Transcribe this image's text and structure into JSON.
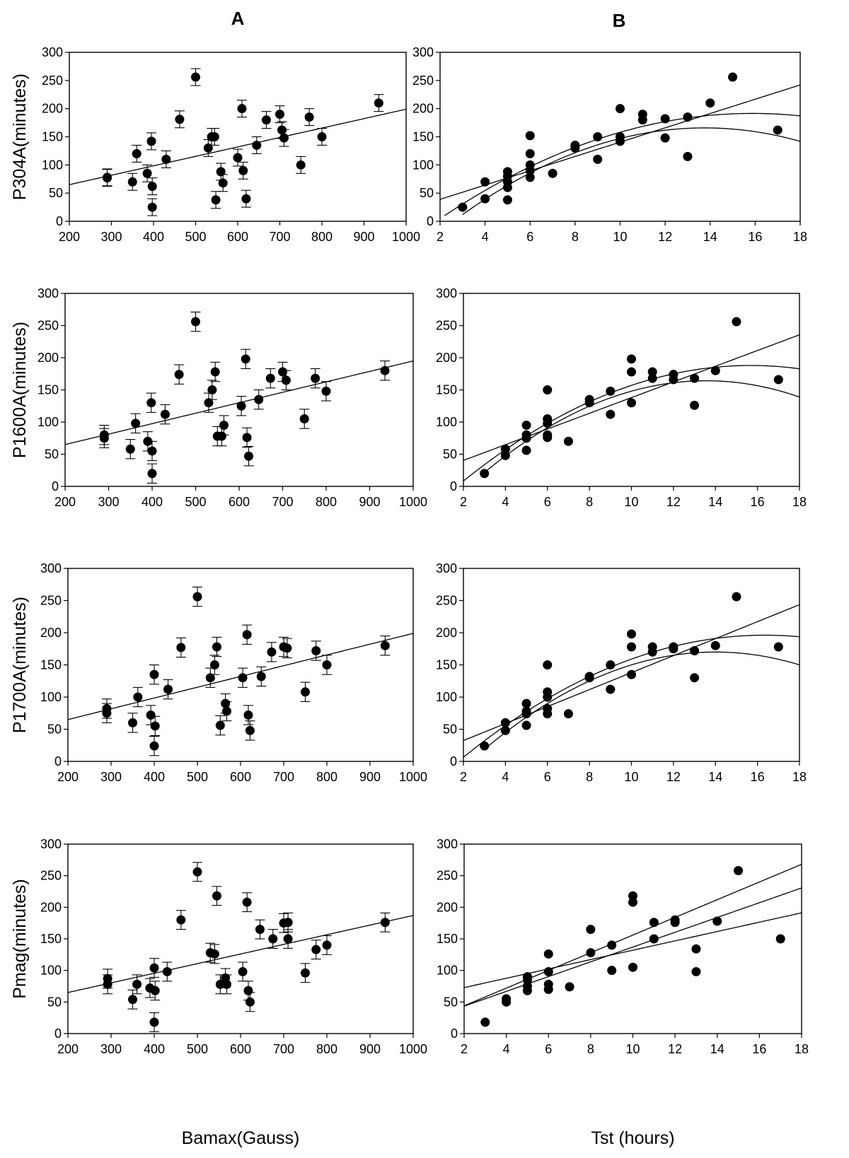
{
  "figure": {
    "column_labels": [
      "A",
      "B"
    ],
    "row_ylabels": [
      "P304A(minutes)",
      "P1600A(minutes)",
      "P1700A(minutes)",
      "Pmag(minutes)"
    ],
    "x_titles": [
      "Bamax(Gauss)",
      "Tst (hours)"
    ]
  },
  "chart_data": [
    {
      "id": "A1",
      "type": "scatter",
      "title": "",
      "xlabel": "",
      "ylabel": "P304A(minutes)",
      "xlim": [
        200,
        1000
      ],
      "ylim": [
        0,
        300
      ],
      "xticks": [
        200,
        300,
        400,
        500,
        600,
        700,
        800,
        900,
        1000
      ],
      "yticks": [
        0,
        50,
        100,
        150,
        200,
        250,
        300
      ],
      "error_bar": 15,
      "points": [
        [
          290,
          77
        ],
        [
          290,
          78
        ],
        [
          350,
          70
        ],
        [
          360,
          120
        ],
        [
          385,
          85
        ],
        [
          395,
          142
        ],
        [
          397,
          62
        ],
        [
          397,
          25
        ],
        [
          430,
          110
        ],
        [
          462,
          181
        ],
        [
          500,
          256
        ],
        [
          530,
          130
        ],
        [
          538,
          150
        ],
        [
          545,
          150
        ],
        [
          548,
          38
        ],
        [
          560,
          88
        ],
        [
          565,
          68
        ],
        [
          600,
          113
        ],
        [
          610,
          200
        ],
        [
          613,
          90
        ],
        [
          620,
          40
        ],
        [
          645,
          135
        ],
        [
          668,
          180
        ],
        [
          700,
          190
        ],
        [
          705,
          162
        ],
        [
          710,
          148
        ],
        [
          750,
          100
        ],
        [
          770,
          185
        ],
        [
          800,
          150
        ],
        [
          935,
          210
        ]
      ],
      "lines": [
        {
          "kind": "linear",
          "coef": [
            0,
            0.1675,
            31.5
          ],
          "x_range": [
            200,
            1000
          ]
        }
      ]
    },
    {
      "id": "B1",
      "type": "scatter",
      "title": "",
      "xlabel": "",
      "ylabel": "",
      "xlim": [
        2,
        18
      ],
      "ylim": [
        0,
        300
      ],
      "xticks": [
        2,
        4,
        6,
        8,
        10,
        12,
        14,
        16,
        18
      ],
      "yticks": [
        0,
        50,
        100,
        150,
        200,
        250,
        300
      ],
      "points": [
        [
          3,
          25
        ],
        [
          4,
          70
        ],
        [
          4,
          40
        ],
        [
          5,
          88
        ],
        [
          5,
          80
        ],
        [
          5,
          70
        ],
        [
          5,
          60
        ],
        [
          5,
          38
        ],
        [
          6,
          152
        ],
        [
          6,
          120
        ],
        [
          6,
          100
        ],
        [
          6,
          90
        ],
        [
          6,
          78
        ],
        [
          7,
          85
        ],
        [
          8,
          135
        ],
        [
          8,
          130
        ],
        [
          9,
          150
        ],
        [
          9,
          110
        ],
        [
          10,
          200
        ],
        [
          10,
          150
        ],
        [
          10,
          142
        ],
        [
          11,
          190
        ],
        [
          11,
          180
        ],
        [
          12,
          182
        ],
        [
          12,
          148
        ],
        [
          13,
          185
        ],
        [
          13,
          115
        ],
        [
          14,
          210
        ],
        [
          15,
          256
        ],
        [
          17,
          162
        ]
      ],
      "lines": [
        {
          "kind": "linear",
          "coef": [
            0,
            12.7,
            13.5
          ],
          "x_range": [
            2,
            18
          ]
        },
        {
          "kind": "quadratic",
          "coef": [
            -0.97,
            30.8,
            -53
          ],
          "x_range": [
            2.2,
            18
          ]
        },
        {
          "kind": "quadratic",
          "coef": [
            -1.33,
            36.6,
            -86
          ],
          "x_range": [
            3.0,
            18
          ]
        }
      ]
    },
    {
      "id": "A2",
      "type": "scatter",
      "title": "",
      "xlabel": "",
      "ylabel": "P1600A(minutes)",
      "xlim": [
        200,
        1000
      ],
      "ylim": [
        0,
        300
      ],
      "xticks": [
        200,
        300,
        400,
        500,
        600,
        700,
        800,
        900,
        1000
      ],
      "yticks": [
        0,
        50,
        100,
        150,
        200,
        250,
        300
      ],
      "error_bar": 15,
      "points": [
        [
          290,
          75
        ],
        [
          290,
          80
        ],
        [
          350,
          58
        ],
        [
          362,
          98
        ],
        [
          390,
          70
        ],
        [
          398,
          130
        ],
        [
          400,
          55
        ],
        [
          400,
          20
        ],
        [
          430,
          112
        ],
        [
          462,
          174
        ],
        [
          500,
          256
        ],
        [
          530,
          130
        ],
        [
          538,
          150
        ],
        [
          545,
          178
        ],
        [
          550,
          78
        ],
        [
          560,
          78
        ],
        [
          565,
          95
        ],
        [
          605,
          125
        ],
        [
          615,
          198
        ],
        [
          618,
          76
        ],
        [
          622,
          47
        ],
        [
          645,
          135
        ],
        [
          672,
          168
        ],
        [
          700,
          178
        ],
        [
          708,
          165
        ],
        [
          750,
          105
        ],
        [
          775,
          168
        ],
        [
          800,
          148
        ],
        [
          935,
          180
        ]
      ],
      "lines": [
        {
          "kind": "linear",
          "coef": [
            0,
            0.1625,
            32.5
          ],
          "x_range": [
            200,
            1000
          ]
        }
      ]
    },
    {
      "id": "B2",
      "type": "scatter",
      "title": "",
      "xlabel": "",
      "ylabel": "",
      "xlim": [
        2,
        18
      ],
      "ylim": [
        0,
        300
      ],
      "xticks": [
        2,
        4,
        6,
        8,
        10,
        12,
        14,
        16,
        18
      ],
      "yticks": [
        0,
        50,
        100,
        150,
        200,
        250,
        300
      ],
      "points": [
        [
          3,
          20
        ],
        [
          4,
          58
        ],
        [
          4,
          48
        ],
        [
          5,
          95
        ],
        [
          5,
          80
        ],
        [
          5,
          75
        ],
        [
          5,
          56
        ],
        [
          6,
          150
        ],
        [
          6,
          105
        ],
        [
          6,
          98
        ],
        [
          6,
          80
        ],
        [
          6,
          76
        ],
        [
          7,
          70
        ],
        [
          8,
          135
        ],
        [
          8,
          130
        ],
        [
          9,
          148
        ],
        [
          9,
          112
        ],
        [
          10,
          198
        ],
        [
          10,
          178
        ],
        [
          10,
          130
        ],
        [
          11,
          178
        ],
        [
          11,
          168
        ],
        [
          12,
          174
        ],
        [
          12,
          166
        ],
        [
          13,
          168
        ],
        [
          13,
          126
        ],
        [
          14,
          180
        ],
        [
          15,
          256
        ],
        [
          17,
          166
        ]
      ],
      "lines": [
        {
          "kind": "linear",
          "coef": [
            0,
            12.2,
            16
          ],
          "x_range": [
            2,
            18
          ]
        },
        {
          "kind": "quadratic",
          "coef": [
            -0.96,
            30.1,
            -48
          ],
          "x_range": [
            2.0,
            18
          ]
        },
        {
          "kind": "quadratic",
          "coef": [
            -1.28,
            34.7,
            -71
          ],
          "x_range": [
            3.1,
            18
          ]
        }
      ]
    },
    {
      "id": "A3",
      "type": "scatter",
      "title": "",
      "xlabel": "",
      "ylabel": "P1700A(minutes)",
      "xlim": [
        200,
        1000
      ],
      "ylim": [
        0,
        300
      ],
      "xticks": [
        200,
        300,
        400,
        500,
        600,
        700,
        800,
        900,
        1000
      ],
      "yticks": [
        0,
        50,
        100,
        150,
        200,
        250,
        300
      ],
      "error_bar": 15,
      "points": [
        [
          290,
          82
        ],
        [
          290,
          75
        ],
        [
          350,
          60
        ],
        [
          362,
          100
        ],
        [
          392,
          72
        ],
        [
          400,
          135
        ],
        [
          402,
          55
        ],
        [
          400,
          24
        ],
        [
          432,
          112
        ],
        [
          462,
          177
        ],
        [
          500,
          256
        ],
        [
          530,
          130
        ],
        [
          540,
          150
        ],
        [
          545,
          178
        ],
        [
          553,
          56
        ],
        [
          565,
          90
        ],
        [
          568,
          78
        ],
        [
          605,
          130
        ],
        [
          615,
          197
        ],
        [
          618,
          72
        ],
        [
          622,
          48
        ],
        [
          648,
          132
        ],
        [
          672,
          170
        ],
        [
          700,
          178
        ],
        [
          708,
          176
        ],
        [
          750,
          108
        ],
        [
          775,
          172
        ],
        [
          800,
          150
        ],
        [
          935,
          180
        ]
      ],
      "lines": [
        {
          "kind": "linear",
          "coef": [
            0,
            0.1675,
            31.5
          ],
          "x_range": [
            200,
            1000
          ]
        }
      ]
    },
    {
      "id": "B3",
      "type": "scatter",
      "title": "",
      "xlabel": "",
      "ylabel": "",
      "xlim": [
        2,
        18
      ],
      "ylim": [
        0,
        300
      ],
      "xticks": [
        2,
        4,
        6,
        8,
        10,
        12,
        14,
        16,
        18
      ],
      "yticks": [
        0,
        50,
        100,
        150,
        200,
        250,
        300
      ],
      "points": [
        [
          3,
          24
        ],
        [
          4,
          60
        ],
        [
          4,
          48
        ],
        [
          5,
          90
        ],
        [
          5,
          78
        ],
        [
          5,
          74
        ],
        [
          5,
          56
        ],
        [
          6,
          150
        ],
        [
          6,
          108
        ],
        [
          6,
          100
        ],
        [
          6,
          82
        ],
        [
          6,
          74
        ],
        [
          7,
          74
        ],
        [
          8,
          132
        ],
        [
          8,
          130
        ],
        [
          9,
          150
        ],
        [
          9,
          112
        ],
        [
          10,
          198
        ],
        [
          10,
          178
        ],
        [
          10,
          135
        ],
        [
          11,
          178
        ],
        [
          11,
          170
        ],
        [
          12,
          178
        ],
        [
          12,
          175
        ],
        [
          13,
          172
        ],
        [
          13,
          130
        ],
        [
          14,
          180
        ],
        [
          15,
          256
        ],
        [
          17,
          178
        ]
      ],
      "lines": [
        {
          "kind": "linear",
          "coef": [
            0,
            13.2,
            6
          ],
          "x_range": [
            2,
            18
          ]
        },
        {
          "kind": "quadratic",
          "coef": [
            -0.92,
            30.1,
            -50
          ],
          "x_range": [
            2.0,
            18
          ]
        },
        {
          "kind": "quadratic",
          "coef": [
            -1.25,
            35.0,
            -75
          ],
          "x_range": [
            3.1,
            18
          ]
        }
      ]
    },
    {
      "id": "A4",
      "type": "scatter",
      "title": "",
      "xlabel": "Bamax(Gauss)",
      "ylabel": "Pmag(minutes)",
      "xlim": [
        200,
        1000
      ],
      "ylim": [
        0,
        300
      ],
      "xticks": [
        200,
        300,
        400,
        500,
        600,
        700,
        800,
        900,
        1000
      ],
      "yticks": [
        0,
        50,
        100,
        150,
        200,
        250,
        300
      ],
      "error_bar": 15,
      "points": [
        [
          292,
          87
        ],
        [
          292,
          78
        ],
        [
          350,
          54
        ],
        [
          360,
          78
        ],
        [
          390,
          72
        ],
        [
          400,
          104
        ],
        [
          402,
          68
        ],
        [
          400,
          18
        ],
        [
          430,
          98
        ],
        [
          462,
          180
        ],
        [
          500,
          256
        ],
        [
          530,
          128
        ],
        [
          540,
          126
        ],
        [
          545,
          218
        ],
        [
          553,
          78
        ],
        [
          565,
          88
        ],
        [
          568,
          78
        ],
        [
          605,
          98
        ],
        [
          615,
          208
        ],
        [
          618,
          68
        ],
        [
          622,
          50
        ],
        [
          645,
          165
        ],
        [
          675,
          150
        ],
        [
          700,
          175
        ],
        [
          710,
          176
        ],
        [
          710,
          150
        ],
        [
          750,
          96
        ],
        [
          775,
          133
        ],
        [
          800,
          140
        ],
        [
          935,
          176
        ]
      ],
      "lines": [
        {
          "kind": "linear",
          "coef": [
            0,
            0.1525,
            34.5
          ],
          "x_range": [
            200,
            1000
          ]
        }
      ]
    },
    {
      "id": "B4",
      "type": "scatter",
      "title": "",
      "xlabel": "Tst (hours)",
      "ylabel": "",
      "xlim": [
        2,
        18
      ],
      "ylim": [
        0,
        300
      ],
      "xticks": [
        2,
        4,
        6,
        8,
        10,
        12,
        14,
        16,
        18
      ],
      "yticks": [
        0,
        50,
        100,
        150,
        200,
        250,
        300
      ],
      "points": [
        [
          3,
          18
        ],
        [
          4,
          55
        ],
        [
          4,
          50
        ],
        [
          5,
          90
        ],
        [
          5,
          85
        ],
        [
          5,
          75
        ],
        [
          5,
          68
        ],
        [
          6,
          126
        ],
        [
          6,
          98
        ],
        [
          6,
          78
        ],
        [
          6,
          70
        ],
        [
          7,
          74
        ],
        [
          8,
          165
        ],
        [
          8,
          128
        ],
        [
          9,
          140
        ],
        [
          9,
          100
        ],
        [
          10,
          218
        ],
        [
          10,
          208
        ],
        [
          10,
          105
        ],
        [
          11,
          176
        ],
        [
          11,
          150
        ],
        [
          12,
          180
        ],
        [
          12,
          176
        ],
        [
          13,
          134
        ],
        [
          13,
          98
        ],
        [
          14,
          178
        ],
        [
          15,
          258
        ],
        [
          17,
          150
        ]
      ],
      "lines": [
        {
          "kind": "linear",
          "coef": [
            0,
            14.0,
            16
          ],
          "x_range": [
            2,
            18
          ]
        },
        {
          "kind": "linear",
          "coef": [
            0,
            11.7,
            20
          ],
          "x_range": [
            2,
            18
          ]
        },
        {
          "kind": "linear",
          "coef": [
            0,
            7.4,
            58
          ],
          "x_range": [
            2,
            18
          ]
        }
      ]
    }
  ]
}
